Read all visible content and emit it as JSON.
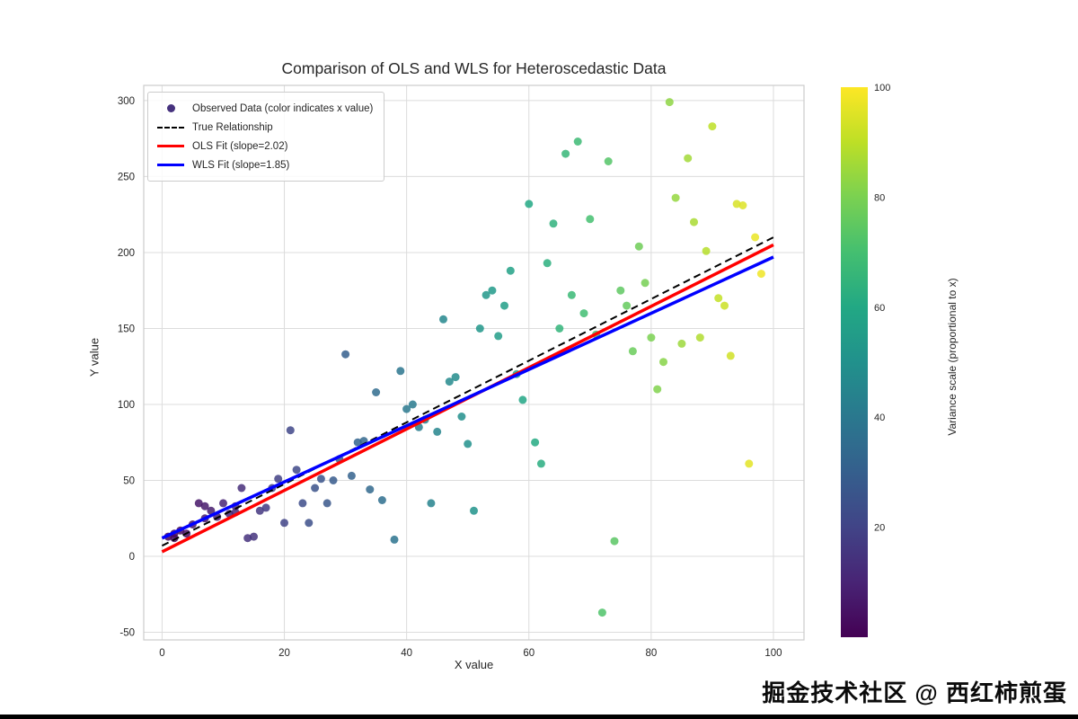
{
  "figure": {
    "watermark": "掘金技术社区 @ 西红柿煎蛋"
  },
  "chart_data": {
    "type": "scatter",
    "title": "Comparison of OLS and WLS for Heteroscedastic Data",
    "xlabel": "X value",
    "ylabel": "Y value",
    "xlim": [
      -3,
      105
    ],
    "ylim": [
      -55,
      310
    ],
    "xticks": [
      0,
      20,
      40,
      60,
      80,
      100
    ],
    "yticks": [
      -50,
      0,
      50,
      100,
      150,
      200,
      250,
      300
    ],
    "grid": true,
    "point_color_by": "x",
    "point_opacity": 0.85,
    "points": [
      [
        1,
        13
      ],
      [
        2,
        12
      ],
      [
        2,
        15
      ],
      [
        3,
        17
      ],
      [
        4,
        15
      ],
      [
        5,
        21
      ],
      [
        6,
        35
      ],
      [
        7,
        33
      ],
      [
        7,
        25
      ],
      [
        8,
        30
      ],
      [
        9,
        26
      ],
      [
        10,
        35
      ],
      [
        11,
        28
      ],
      [
        12,
        29
      ],
      [
        12,
        33
      ],
      [
        13,
        45
      ],
      [
        14,
        12
      ],
      [
        15,
        13
      ],
      [
        16,
        30
      ],
      [
        17,
        32
      ],
      [
        18,
        45
      ],
      [
        19,
        51
      ],
      [
        20,
        22
      ],
      [
        21,
        83
      ],
      [
        22,
        57
      ],
      [
        23,
        35
      ],
      [
        24,
        22
      ],
      [
        25,
        45
      ],
      [
        26,
        51
      ],
      [
        27,
        35
      ],
      [
        28,
        50
      ],
      [
        29,
        64
      ],
      [
        30,
        133
      ],
      [
        31,
        53
      ],
      [
        32,
        75
      ],
      [
        33,
        76
      ],
      [
        34,
        44
      ],
      [
        35,
        108
      ],
      [
        36,
        37
      ],
      [
        38,
        11
      ],
      [
        39,
        122
      ],
      [
        40,
        97
      ],
      [
        41,
        100
      ],
      [
        42,
        85
      ],
      [
        43,
        90
      ],
      [
        44,
        35
      ],
      [
        45,
        82
      ],
      [
        46,
        156
      ],
      [
        47,
        115
      ],
      [
        48,
        118
      ],
      [
        49,
        92
      ],
      [
        50,
        74
      ],
      [
        51,
        30
      ],
      [
        52,
        150
      ],
      [
        53,
        172
      ],
      [
        54,
        175
      ],
      [
        55,
        145
      ],
      [
        56,
        165
      ],
      [
        57,
        188
      ],
      [
        58,
        120
      ],
      [
        59,
        103
      ],
      [
        60,
        232
      ],
      [
        61,
        75
      ],
      [
        62,
        61
      ],
      [
        63,
        193
      ],
      [
        64,
        219
      ],
      [
        65,
        150
      ],
      [
        66,
        265
      ],
      [
        67,
        172
      ],
      [
        68,
        273
      ],
      [
        69,
        160
      ],
      [
        70,
        222
      ],
      [
        71,
        146
      ],
      [
        72,
        -37
      ],
      [
        73,
        260
      ],
      [
        74,
        10
      ],
      [
        75,
        175
      ],
      [
        76,
        165
      ],
      [
        77,
        135
      ],
      [
        78,
        204
      ],
      [
        79,
        180
      ],
      [
        80,
        144
      ],
      [
        81,
        110
      ],
      [
        82,
        128
      ],
      [
        83,
        299
      ],
      [
        84,
        236
      ],
      [
        85,
        140
      ],
      [
        86,
        262
      ],
      [
        87,
        220
      ],
      [
        88,
        144
      ],
      [
        89,
        201
      ],
      [
        90,
        283
      ],
      [
        91,
        170
      ],
      [
        92,
        165
      ],
      [
        93,
        132
      ],
      [
        94,
        232
      ],
      [
        95,
        231
      ],
      [
        96,
        61
      ],
      [
        97,
        210
      ],
      [
        98,
        186
      ]
    ],
    "lines": [
      {
        "name": "True Relationship",
        "slope": 2.03,
        "intercept": 7,
        "color": "#000000",
        "dash": "8 5",
        "width": 2,
        "x_range": [
          0,
          100
        ]
      },
      {
        "name": "OLS Fit (slope=2.02)",
        "slope": 2.02,
        "intercept": 3,
        "color": "#ff0000",
        "dash": "",
        "width": 3.5,
        "x_range": [
          0,
          100
        ]
      },
      {
        "name": "WLS Fit (slope=1.85)",
        "slope": 1.85,
        "intercept": 12,
        "color": "#0000ff",
        "dash": "",
        "width": 3.5,
        "x_range": [
          0,
          100
        ]
      }
    ],
    "legend": {
      "position": "upper left",
      "items": [
        {
          "label": "Observed Data (color indicates x value)",
          "marker": "dot",
          "color": "#46327e"
        },
        {
          "label": "True Relationship",
          "marker": "dashed-line",
          "color": "#000000"
        },
        {
          "label": "OLS Fit (slope=2.02)",
          "marker": "line",
          "color": "#ff0000"
        },
        {
          "label": "WLS Fit (slope=1.85)",
          "marker": "line",
          "color": "#0000ff"
        }
      ]
    },
    "colorbar": {
      "label": "Variance scale (proportional to x)",
      "ticks": [
        20,
        40,
        60,
        80,
        100
      ],
      "range": [
        0,
        100
      ],
      "colormap": "viridis",
      "stops": [
        "#440154",
        "#482475",
        "#414487",
        "#355f8d",
        "#2a788e",
        "#21918c",
        "#22a884",
        "#44bf70",
        "#7ad151",
        "#bddf26",
        "#fde725"
      ]
    },
    "colors": {
      "grid": "#dcdcdc",
      "frame": "#cccccc",
      "text": "#262626",
      "background": "#ffffff"
    }
  }
}
